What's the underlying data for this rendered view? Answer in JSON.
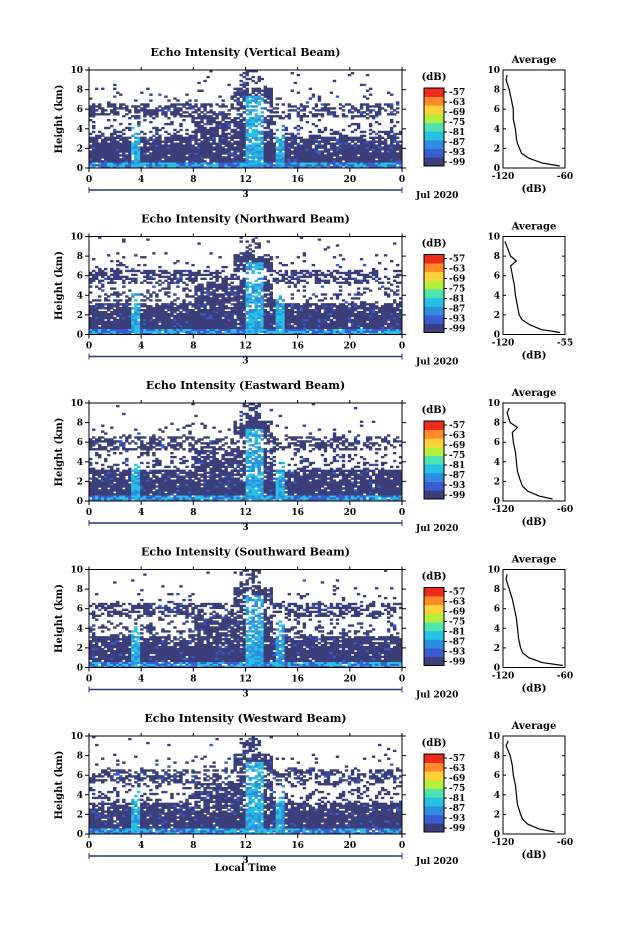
{
  "figure": {
    "xlabel": "Local Time",
    "date_label": "Jul 2020",
    "day_label": "3",
    "colorbar_unit": "(dB)",
    "colorbar_ticks": [
      "-57",
      "-63",
      "-69",
      "-75",
      "-81",
      "-87",
      "-93",
      "-99"
    ],
    "colorscale": [
      "#3a3f7a",
      "#3b5bd0",
      "#2f8de0",
      "#27c2e3",
      "#4fe3b0",
      "#b6ee3e",
      "#ffd23a",
      "#ff8a2a",
      "#ee2a1a"
    ],
    "avg_title": "Average",
    "avg_xlabel": "(dB)"
  },
  "chart_data": [
    {
      "type": "heatmap",
      "title": "Echo Intensity (Vertical Beam)",
      "ylabel": "Height (km)",
      "x_ticks": [
        "0",
        "4",
        "8",
        "12",
        "16",
        "20",
        "0"
      ],
      "y_ticks": [
        "0",
        "2",
        "4",
        "6",
        "8",
        "10"
      ],
      "xlim": [
        0,
        24
      ],
      "ylim": [
        0,
        10
      ],
      "colorbar_range": [
        -99,
        -57
      ],
      "average": {
        "xlim": [
          -120,
          -60
        ],
        "x_ticks": [
          "-120",
          "-60"
        ],
        "y_ticks": [
          "0",
          "2",
          "4",
          "6",
          "8",
          "10"
        ],
        "height_km": [
          0.2,
          0.5,
          1,
          1.5,
          2,
          2.5,
          3,
          4,
          5,
          6,
          7,
          8,
          9,
          9.5
        ],
        "value_db": [
          -65,
          -82,
          -95,
          -102,
          -104,
          -106,
          -107,
          -108,
          -110,
          -110,
          -112,
          -114,
          -117,
          -116
        ]
      }
    },
    {
      "type": "heatmap",
      "title": "Echo Intensity (Northward Beam)",
      "ylabel": "Height (km)",
      "x_ticks": [
        "0",
        "4",
        "8",
        "12",
        "16",
        "20",
        "0"
      ],
      "y_ticks": [
        "0",
        "2",
        "4",
        "6",
        "8",
        "10"
      ],
      "xlim": [
        0,
        24
      ],
      "ylim": [
        0,
        10
      ],
      "colorbar_range": [
        -99,
        -57
      ],
      "average": {
        "xlim": [
          -120,
          -55
        ],
        "x_ticks": [
          "-120",
          "-55"
        ],
        "y_ticks": [
          "0",
          "2",
          "4",
          "6",
          "8",
          "10"
        ],
        "height_km": [
          0.2,
          0.5,
          1,
          1.5,
          2,
          3,
          4,
          5,
          6,
          7,
          7.5,
          8,
          9,
          9.5
        ],
        "value_db": [
          -60,
          -80,
          -92,
          -100,
          -103,
          -105,
          -107,
          -108,
          -110,
          -112,
          -106,
          -112,
          -116,
          -118
        ]
      }
    },
    {
      "type": "heatmap",
      "title": "Echo Intensity (Eastward Beam)",
      "ylabel": "Height (km)",
      "x_ticks": [
        "0",
        "4",
        "8",
        "12",
        "16",
        "20",
        "0"
      ],
      "y_ticks": [
        "0",
        "2",
        "4",
        "6",
        "8",
        "10"
      ],
      "xlim": [
        0,
        24
      ],
      "ylim": [
        0,
        10
      ],
      "colorbar_range": [
        -99,
        -57
      ],
      "average": {
        "xlim": [
          -120,
          -60
        ],
        "x_ticks": [
          "-120",
          "-60"
        ],
        "y_ticks": [
          "0",
          "2",
          "4",
          "6",
          "8",
          "10"
        ],
        "height_km": [
          0.2,
          0.5,
          1,
          1.5,
          2,
          3,
          4,
          5,
          6,
          7,
          7.5,
          8,
          9,
          9.5
        ],
        "value_db": [
          -72,
          -85,
          -96,
          -101,
          -103,
          -106,
          -107,
          -108,
          -110,
          -111,
          -106,
          -113,
          -116,
          -114
        ]
      }
    },
    {
      "type": "heatmap",
      "title": "Echo Intensity (Southward Beam)",
      "ylabel": "Height (km)",
      "x_ticks": [
        "0",
        "4",
        "8",
        "12",
        "16",
        "20",
        "0"
      ],
      "y_ticks": [
        "0",
        "2",
        "4",
        "6",
        "8",
        "10"
      ],
      "xlim": [
        0,
        24
      ],
      "ylim": [
        0,
        10
      ],
      "colorbar_range": [
        -99,
        -57
      ],
      "average": {
        "xlim": [
          -120,
          -60
        ],
        "x_ticks": [
          "-120",
          "-60"
        ],
        "y_ticks": [
          "0",
          "2",
          "4",
          "6",
          "8",
          "10"
        ],
        "height_km": [
          0.2,
          0.5,
          1,
          1.5,
          2,
          3,
          4,
          5,
          6,
          7,
          8,
          9,
          9.5
        ],
        "value_db": [
          -62,
          -82,
          -95,
          -101,
          -103,
          -105,
          -106,
          -107,
          -109,
          -111,
          -114,
          -117,
          -116
        ]
      }
    },
    {
      "type": "heatmap",
      "title": "Echo Intensity (Westward Beam)",
      "ylabel": "Height (km)",
      "x_ticks": [
        "0",
        "4",
        "8",
        "12",
        "16",
        "20",
        "0"
      ],
      "y_ticks": [
        "0",
        "2",
        "4",
        "6",
        "8",
        "10"
      ],
      "xlim": [
        0,
        24
      ],
      "ylim": [
        0,
        10
      ],
      "colorbar_range": [
        -99,
        -57
      ],
      "average": {
        "xlim": [
          -120,
          -60
        ],
        "x_ticks": [
          "-120",
          "-60"
        ],
        "y_ticks": [
          "0",
          "2",
          "4",
          "6",
          "8",
          "10"
        ],
        "height_km": [
          0.2,
          0.5,
          1,
          1.5,
          2,
          3,
          4,
          5,
          6,
          7,
          8,
          9,
          9.5
        ],
        "value_db": [
          -70,
          -85,
          -96,
          -101,
          -103,
          -106,
          -107,
          -108,
          -110,
          -111,
          -113,
          -117,
          -115
        ]
      }
    }
  ]
}
